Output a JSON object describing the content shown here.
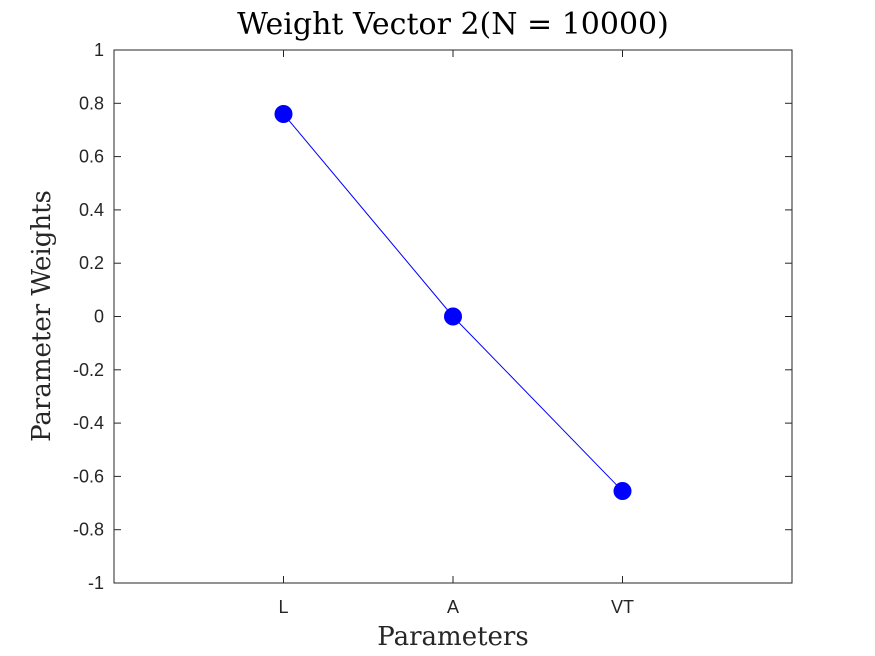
{
  "chart_data": {
    "type": "line",
    "title": "Weight Vector 2(N = 10000)",
    "xlabel": "Parameters",
    "ylabel": "Parameter Weights",
    "categories": [
      "L",
      "A",
      "VT"
    ],
    "series": [
      {
        "values": [
          0.76,
          0.0,
          -0.655
        ],
        "color": "#0000ff",
        "marker": "filled-circle"
      }
    ],
    "ylim": [
      -1,
      1
    ],
    "xlim": [
      0,
      4
    ],
    "yticks": [
      -1,
      -0.8,
      -0.6,
      -0.4,
      -0.2,
      0,
      0.2,
      0.4,
      0.6,
      0.8,
      1
    ],
    "ytick_labels": [
      "-1",
      "-0.8",
      "-0.6",
      "-0.4",
      "-0.2",
      "0",
      "0.2",
      "0.4",
      "0.6",
      "0.8",
      "1"
    ],
    "grid": false,
    "legend": "none",
    "box": true
  }
}
